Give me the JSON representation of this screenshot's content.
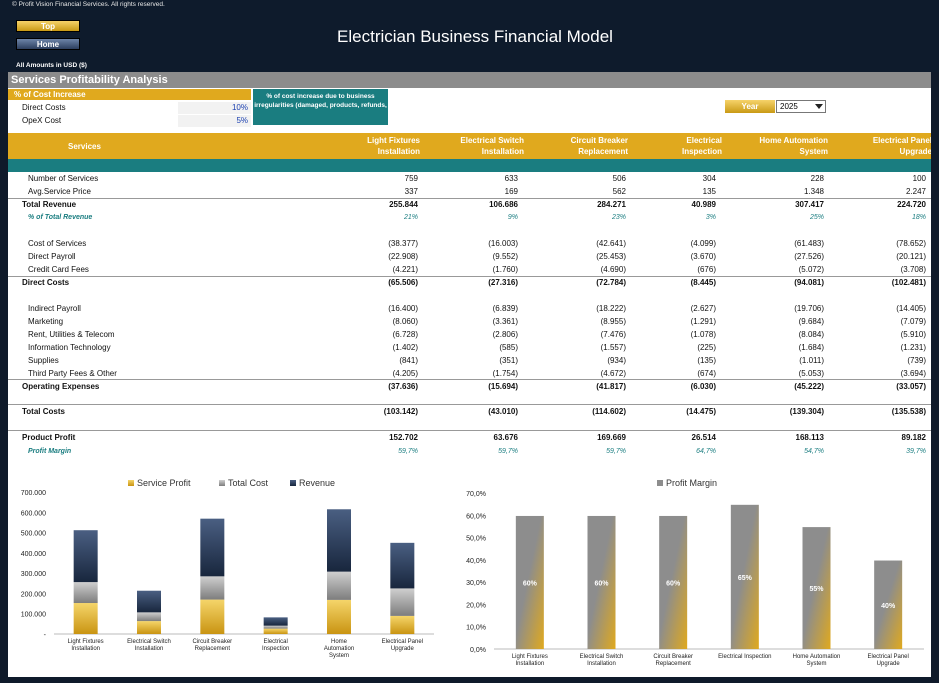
{
  "header": {
    "copyright": "© Profit Vision Financial Services. All rights reserved.",
    "top_button": "Top",
    "home_button": "Home",
    "title": "Electrician Business Financial Model",
    "amounts_note": "All Amounts in  USD ($)"
  },
  "section_title": "Services Profitability Analysis",
  "cost_increase": {
    "header": "% of Cost Increase",
    "rows": [
      {
        "label": "Direct Costs",
        "value": "10%"
      },
      {
        "label": "OpeX Cost",
        "value": "5%"
      }
    ],
    "note": "% of cost increase due to business irregularities (damaged, products, refunds,"
  },
  "year": {
    "label": "Year",
    "value": "2025"
  },
  "table": {
    "services_header": "Services",
    "columns": [
      {
        "line1": "Light Fixtures",
        "line2": "Installation"
      },
      {
        "line1": "Electrical Switch",
        "line2": "Installation"
      },
      {
        "line1": "Circuit Breaker",
        "line2": "Replacement"
      },
      {
        "line1": "Electrical",
        "line2": "Inspection"
      },
      {
        "line1": "Home Automation",
        "line2": "System"
      },
      {
        "line1": "Electrical Panel",
        "line2": "Upgrade"
      }
    ],
    "rows": [
      {
        "label": "Number of Services",
        "values": [
          "759",
          "633",
          "506",
          "304",
          "228",
          "100"
        ]
      },
      {
        "label": "Avg.Service Price",
        "values": [
          "337",
          "169",
          "562",
          "135",
          "1.348",
          "2.247"
        ]
      },
      {
        "label": "Total Revenue",
        "values": [
          "255.844",
          "106.686",
          "284.271",
          "40.989",
          "307.417",
          "224.720"
        ]
      },
      {
        "label": "% of Total Revenue",
        "values": [
          "21%",
          "9%",
          "23%",
          "3%",
          "25%",
          "18%"
        ]
      },
      {
        "label": "Cost of Services",
        "values": [
          "(38.377)",
          "(16.003)",
          "(42.641)",
          "(4.099)",
          "(61.483)",
          "(78.652)"
        ]
      },
      {
        "label": "Direct Payroll",
        "values": [
          "(22.908)",
          "(9.552)",
          "(25.453)",
          "(3.670)",
          "(27.526)",
          "(20.121)"
        ]
      },
      {
        "label": "Credit Card Fees",
        "values": [
          "(4.221)",
          "(1.760)",
          "(4.690)",
          "(676)",
          "(5.072)",
          "(3.708)"
        ]
      },
      {
        "label": "Direct Costs",
        "values": [
          "(65.506)",
          "(27.316)",
          "(72.784)",
          "(8.445)",
          "(94.081)",
          "(102.481)"
        ]
      },
      {
        "label": "Indirect Payroll",
        "values": [
          "(16.400)",
          "(6.839)",
          "(18.222)",
          "(2.627)",
          "(19.706)",
          "(14.405)"
        ]
      },
      {
        "label": "Marketing",
        "values": [
          "(8.060)",
          "(3.361)",
          "(8.955)",
          "(1.291)",
          "(9.684)",
          "(7.079)"
        ]
      },
      {
        "label": "Rent, Utilities & Telecom",
        "values": [
          "(6.728)",
          "(2.806)",
          "(7.476)",
          "(1.078)",
          "(8.084)",
          "(5.910)"
        ]
      },
      {
        "label": "Information Technology",
        "values": [
          "(1.402)",
          "(585)",
          "(1.557)",
          "(225)",
          "(1.684)",
          "(1.231)"
        ]
      },
      {
        "label": "Supplies",
        "values": [
          "(841)",
          "(351)",
          "(934)",
          "(135)",
          "(1.011)",
          "(739)"
        ]
      },
      {
        "label": "Third Party Fees & Other",
        "values": [
          "(4.205)",
          "(1.754)",
          "(4.672)",
          "(674)",
          "(5.053)",
          "(3.694)"
        ]
      },
      {
        "label": "Operating Expenses",
        "values": [
          "(37.636)",
          "(15.694)",
          "(41.817)",
          "(6.030)",
          "(45.222)",
          "(33.057)"
        ]
      },
      {
        "label": "Total Costs",
        "values": [
          "(103.142)",
          "(43.010)",
          "(114.602)",
          "(14.475)",
          "(139.304)",
          "(135.538)"
        ]
      },
      {
        "label": "Product Profit",
        "values": [
          "152.702",
          "63.676",
          "169.669",
          "26.514",
          "168.113",
          "89.182"
        ]
      },
      {
        "label": "Profit Margin",
        "values": [
          "59,7%",
          "59,7%",
          "59,7%",
          "64,7%",
          "54,7%",
          "39,7%"
        ]
      }
    ]
  },
  "chart_data": [
    {
      "type": "bar",
      "stacked": true,
      "categories": [
        "Light Fixtures Installation",
        "Electrical Switch Installation",
        "Circuit Breaker Replacement",
        "Electrical Inspection",
        "Home Automation System",
        "Electrical Panel Upgrade"
      ],
      "series": [
        {
          "name": "Service Profit",
          "values": [
            152702,
            63676,
            169669,
            26514,
            168113,
            89182
          ]
        },
        {
          "name": "Total Cost",
          "values": [
            103142,
            43010,
            114602,
            14475,
            139304,
            135538
          ]
        },
        {
          "name": "Revenue",
          "values": [
            255844,
            106686,
            284271,
            40989,
            307417,
            224720
          ]
        }
      ],
      "yticks": [
        "-",
        "100.000",
        "200.000",
        "300.000",
        "400.000",
        "500.000",
        "600.000",
        "700.000"
      ],
      "ylim": [
        0,
        700000
      ],
      "legend": "top",
      "colors": {
        "Service Profit": "#e0a91e",
        "Total Cost": "#9a9a9a",
        "Revenue": "#1f2f4a"
      }
    },
    {
      "type": "bar",
      "categories": [
        "Light Fixtures Installation",
        "Electrical Switch Installation",
        "Circuit Breaker Replacement",
        "Electrical Inspection",
        "Home Automation System",
        "Electrical Panel Upgrade"
      ],
      "series": [
        {
          "name": "Profit Margin",
          "values": [
            0.597,
            0.597,
            0.597,
            0.647,
            0.547,
            0.397
          ]
        }
      ],
      "data_labels": [
        "60%",
        "60%",
        "60%",
        "65%",
        "55%",
        "40%"
      ],
      "yticks": [
        "0,0%",
        "10,0%",
        "20,0%",
        "30,0%",
        "40,0%",
        "50,0%",
        "60,0%",
        "70,0%"
      ],
      "ylim": [
        0,
        0.7
      ],
      "legend": "top"
    }
  ]
}
